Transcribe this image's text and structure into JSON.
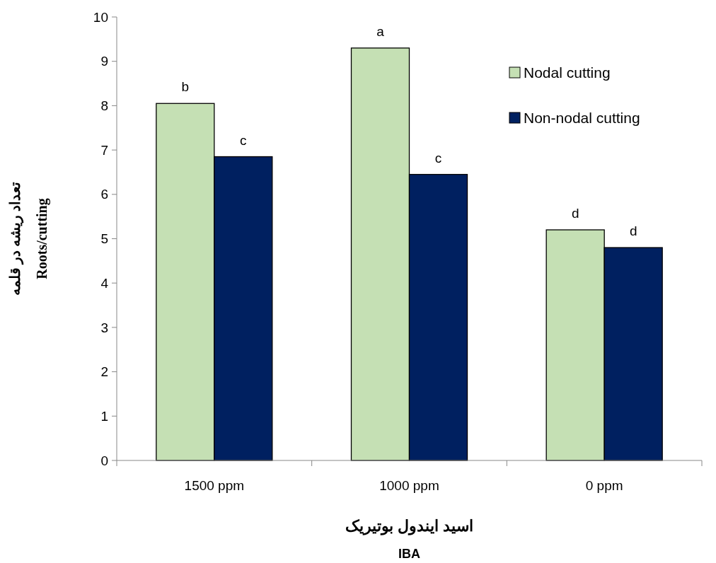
{
  "chart_data": {
    "type": "bar",
    "categories": [
      "1500 ppm",
      "1000 ppm",
      "0 ppm"
    ],
    "series": [
      {
        "name": "Nodal cutting",
        "color": "#c5e0b4",
        "values": [
          8.05,
          9.3,
          5.2
        ],
        "value_labels": [
          "b",
          "a",
          "d"
        ]
      },
      {
        "name": "Non-nodal cutting",
        "color": "#002060",
        "values": [
          6.85,
          6.45,
          4.8
        ],
        "value_labels": [
          "c",
          "c",
          "d"
        ]
      }
    ],
    "ylim": [
      0,
      10
    ],
    "yticks": [
      0,
      1,
      2,
      3,
      4,
      5,
      6,
      7,
      8,
      9,
      10
    ],
    "xlabel": "اسید ایندول بوتیریک\nIBA",
    "ylabel": "تعداد ریشه در  قلمه\nRoots/cutting",
    "legend": "top right",
    "grid": false
  }
}
